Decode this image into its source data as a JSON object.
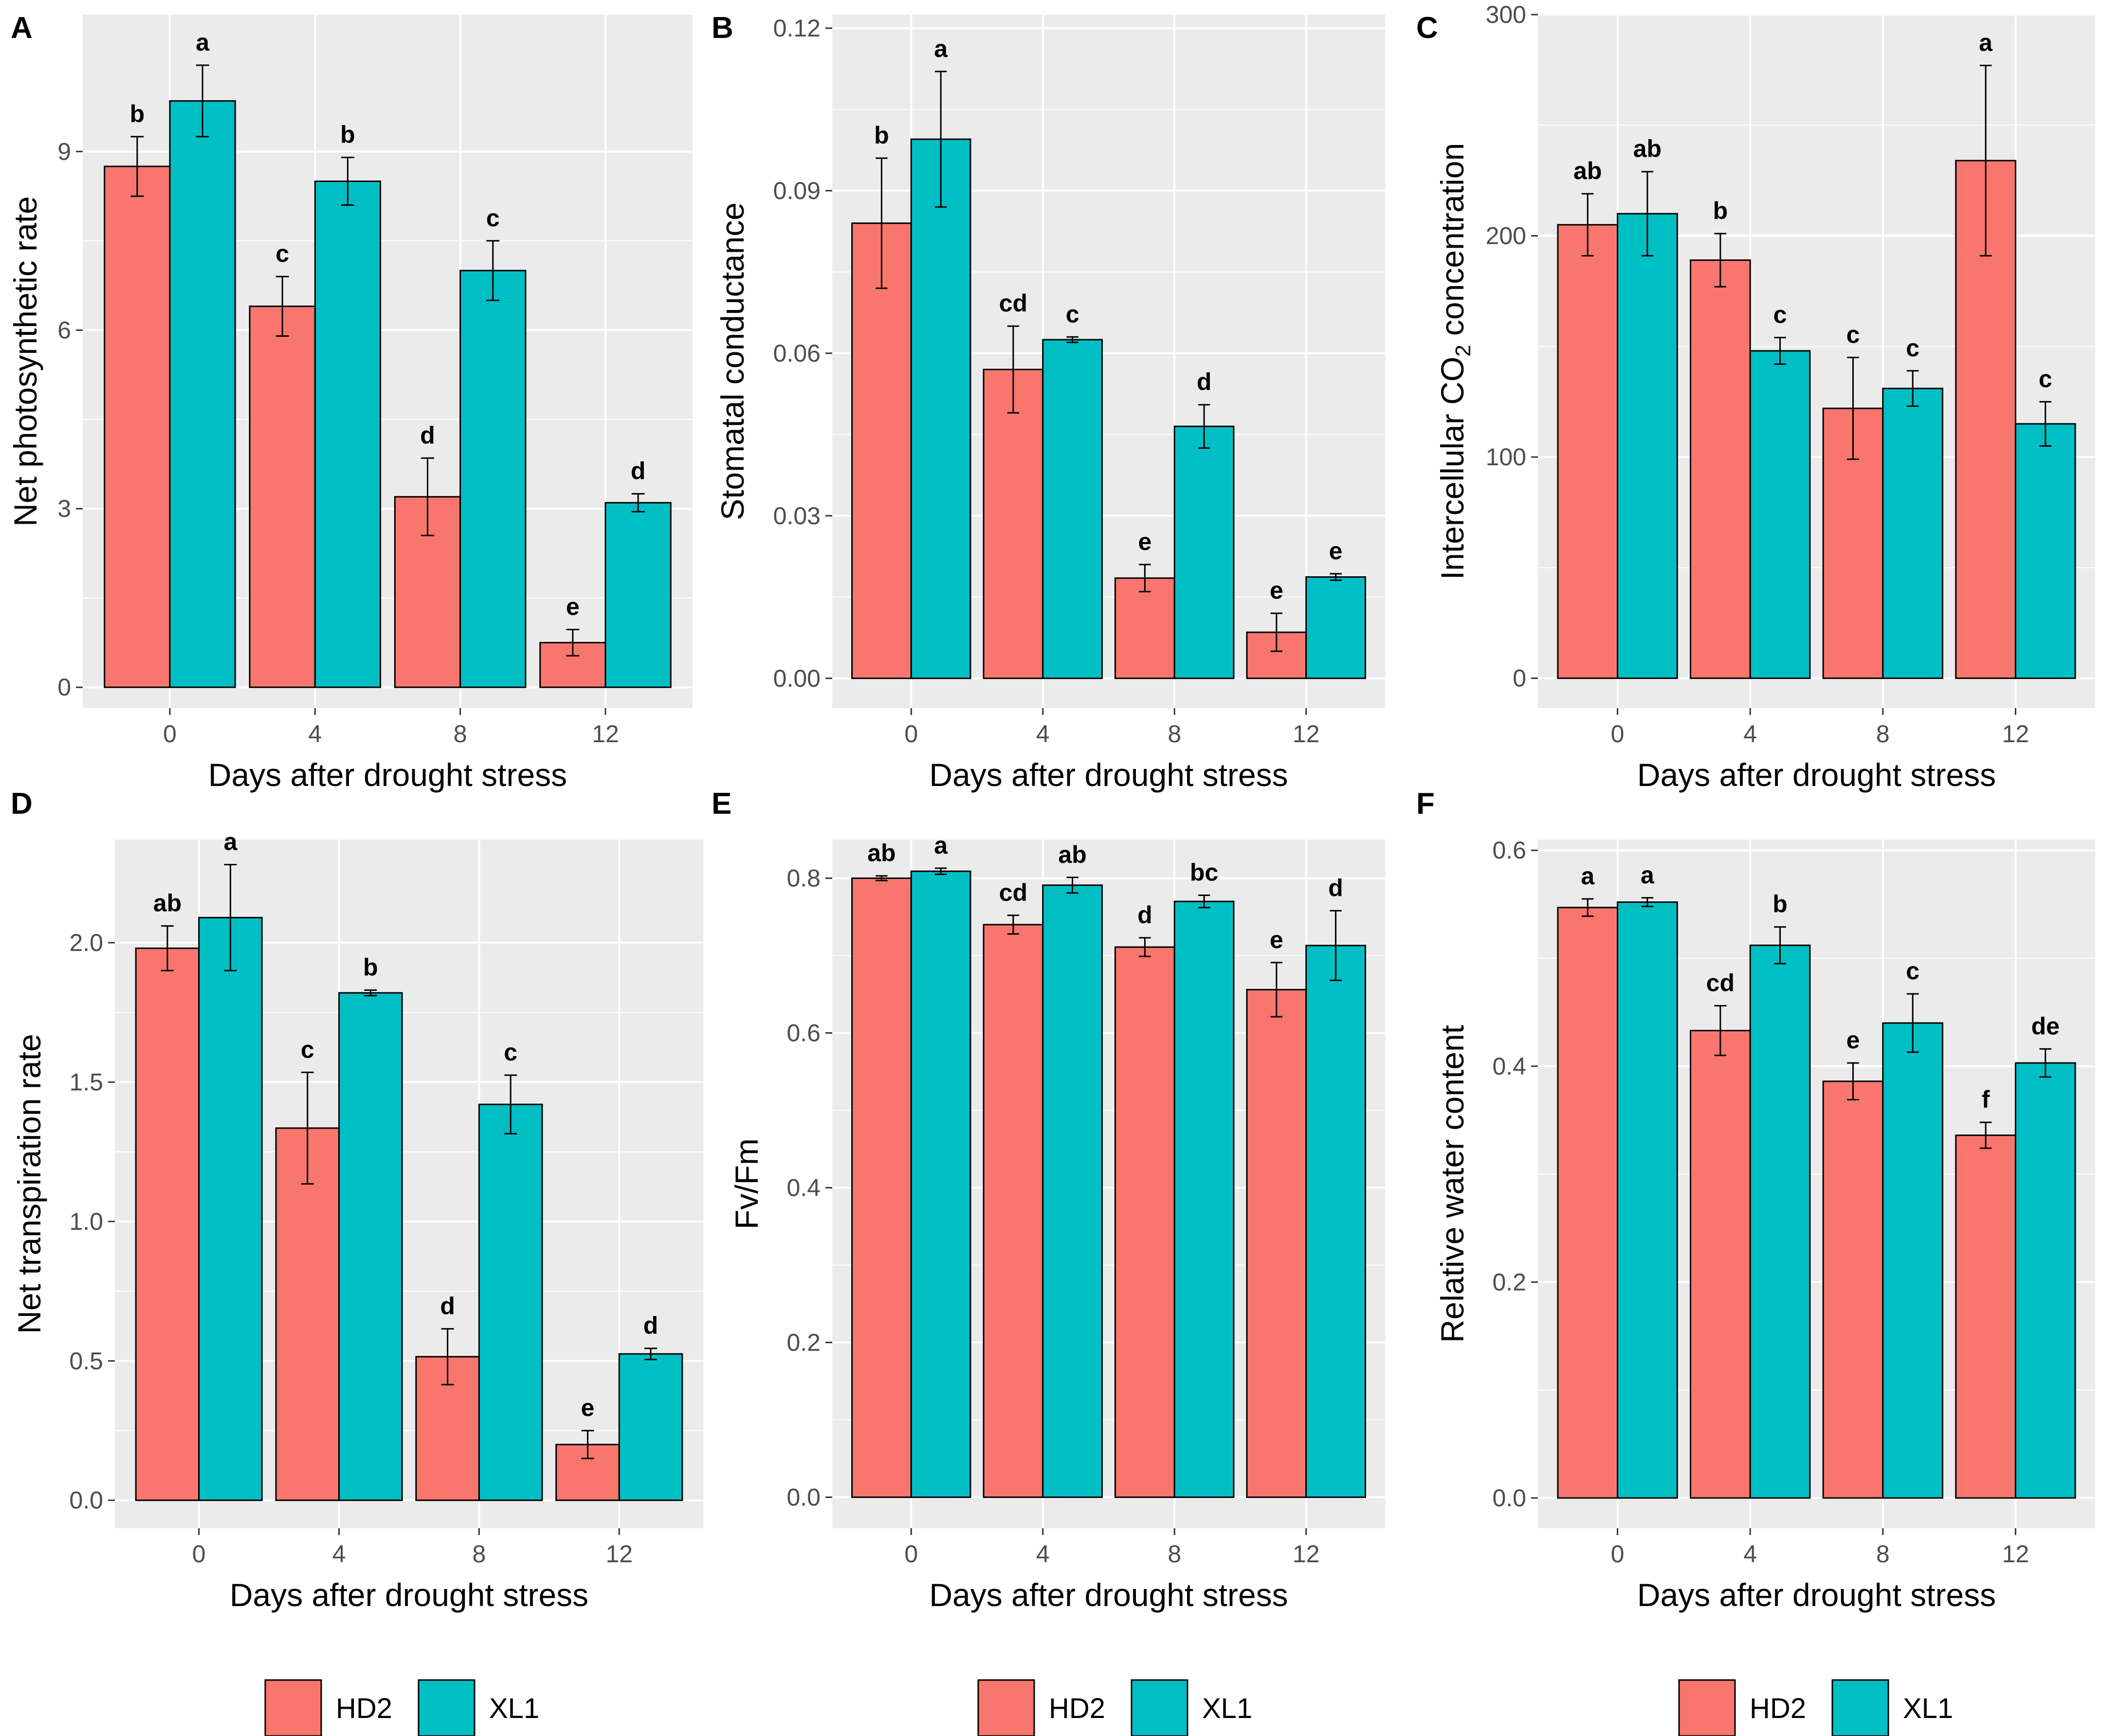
{
  "colors": {
    "HD2": "#F8766D",
    "XL1": "#00BFC4",
    "panel_bg": "#EBEBEB",
    "grid": "#FFFFFF"
  },
  "legends": [
    {
      "items": [
        {
          "label": "HD2",
          "color": "#F8766D"
        },
        {
          "label": "XL1",
          "color": "#00BFC4"
        }
      ]
    },
    {
      "items": [
        {
          "label": "HD2",
          "color": "#F8766D"
        },
        {
          "label": "XL1",
          "color": "#00BFC4"
        }
      ]
    },
    {
      "items": [
        {
          "label": "HD2",
          "color": "#F8766D"
        },
        {
          "label": "XL1",
          "color": "#00BFC4"
        }
      ]
    }
  ],
  "chart_data": [
    {
      "panel": "A",
      "type": "bar",
      "xlabel": "Days after drought stress",
      "ylabel": "Net photosynthetic rate",
      "categories": [
        "0",
        "4",
        "8",
        "12"
      ],
      "ylim": [
        -0.35,
        11.3
      ],
      "yticks": [
        0,
        3,
        6,
        9
      ],
      "ytick_labels": [
        "0",
        "3",
        "6",
        "9"
      ],
      "series": [
        {
          "name": "HD2",
          "values": [
            8.75,
            6.4,
            3.2,
            0.75
          ],
          "errors": [
            0.5,
            0.5,
            0.65,
            0.22
          ],
          "labels": [
            "b",
            "c",
            "d",
            "e"
          ]
        },
        {
          "name": "XL1",
          "values": [
            9.85,
            8.5,
            7.0,
            3.1
          ],
          "errors": [
            0.6,
            0.4,
            0.5,
            0.15
          ],
          "labels": [
            "a",
            "b",
            "c",
            "d"
          ]
        }
      ]
    },
    {
      "panel": "B",
      "type": "bar",
      "xlabel": "Days after drought stress",
      "ylabel": "Stomatal conductance",
      "categories": [
        "0",
        "4",
        "8",
        "12"
      ],
      "ylim": [
        -0.0055,
        0.1225
      ],
      "yticks": [
        0,
        0.03,
        0.06,
        0.09,
        0.12
      ],
      "ytick_labels": [
        "0.00",
        "0.03",
        "0.06",
        "0.09",
        "0.12"
      ],
      "series": [
        {
          "name": "HD2",
          "values": [
            0.084,
            0.057,
            0.0185,
            0.0085
          ],
          "errors": [
            0.012,
            0.008,
            0.0025,
            0.0035
          ],
          "labels": [
            "b",
            "cd",
            "e",
            "e"
          ]
        },
        {
          "name": "XL1",
          "values": [
            0.0995,
            0.0625,
            0.0465,
            0.0187
          ],
          "errors": [
            0.0125,
            0.0005,
            0.004,
            0.0006
          ],
          "labels": [
            "a",
            "c",
            "d",
            "e"
          ]
        }
      ]
    },
    {
      "panel": "C",
      "type": "bar",
      "xlabel": "Days after drought stress",
      "ylabel": "Intercellular CO",
      "ylabel_subscript": "2",
      "ylabel_suffix": " concentration",
      "categories": [
        "0",
        "4",
        "8",
        "12"
      ],
      "ylim": [
        -13.5,
        300
      ],
      "yticks": [
        0,
        100,
        200,
        300
      ],
      "ytick_labels": [
        "0",
        "100",
        "200",
        "300"
      ],
      "series": [
        {
          "name": "HD2",
          "values": [
            205,
            189,
            122,
            234
          ],
          "errors": [
            14,
            12,
            23,
            43
          ],
          "labels": [
            "ab",
            "b",
            "c",
            "a"
          ]
        },
        {
          "name": "XL1",
          "values": [
            210,
            148,
            131,
            115
          ],
          "errors": [
            19,
            6,
            8,
            10
          ],
          "labels": [
            "ab",
            "c",
            "c",
            "c"
          ]
        }
      ]
    },
    {
      "panel": "D",
      "type": "bar",
      "xlabel": "Days after drought stress",
      "ylabel": "Net transpiration rate",
      "categories": [
        "0",
        "4",
        "8",
        "12"
      ],
      "ylim": [
        -0.1,
        2.37
      ],
      "yticks": [
        0,
        0.5,
        1.0,
        1.5,
        2.0
      ],
      "ytick_labels": [
        "0.0",
        "0.5",
        "1.0",
        "1.5",
        "2.0"
      ],
      "series": [
        {
          "name": "HD2",
          "values": [
            1.98,
            1.335,
            0.515,
            0.2
          ],
          "errors": [
            0.08,
            0.2,
            0.1,
            0.05
          ],
          "labels": [
            "ab",
            "c",
            "d",
            "e"
          ]
        },
        {
          "name": "XL1",
          "values": [
            2.09,
            1.82,
            1.42,
            0.525
          ],
          "errors": [
            0.19,
            0.01,
            0.105,
            0.02
          ],
          "labels": [
            "a",
            "b",
            "c",
            "d"
          ]
        }
      ]
    },
    {
      "panel": "E",
      "type": "bar",
      "xlabel": "Days after drought stress",
      "ylabel": "Fv/Fm",
      "categories": [
        "0",
        "4",
        "8",
        "12"
      ],
      "ylim": [
        -0.04,
        0.85
      ],
      "yticks": [
        0,
        0.2,
        0.4,
        0.6,
        0.8
      ],
      "ytick_labels": [
        "0.0",
        "0.2",
        "0.4",
        "0.6",
        "0.8"
      ],
      "series": [
        {
          "name": "HD2",
          "values": [
            0.8,
            0.74,
            0.711,
            0.656
          ],
          "errors": [
            0.003,
            0.012,
            0.012,
            0.035
          ],
          "labels": [
            "ab",
            "cd",
            "d",
            "e"
          ]
        },
        {
          "name": "XL1",
          "values": [
            0.809,
            0.791,
            0.77,
            0.713
          ],
          "errors": [
            0.004,
            0.01,
            0.008,
            0.045
          ],
          "labels": [
            "a",
            "ab",
            "bc",
            "d"
          ]
        }
      ]
    },
    {
      "panel": "F",
      "type": "bar",
      "xlabel": "Days after drought stress",
      "ylabel": "Relative water content",
      "categories": [
        "0",
        "4",
        "8",
        "12"
      ],
      "ylim": [
        -0.028,
        0.61
      ],
      "yticks": [
        0,
        0.2,
        0.4,
        0.6
      ],
      "ytick_labels": [
        "0.0",
        "0.2",
        "0.4",
        "0.6"
      ],
      "series": [
        {
          "name": "HD2",
          "values": [
            0.547,
            0.433,
            0.386,
            0.336
          ],
          "errors": [
            0.008,
            0.023,
            0.017,
            0.012
          ],
          "labels": [
            "a",
            "cd",
            "e",
            "f"
          ]
        },
        {
          "name": "XL1",
          "values": [
            0.552,
            0.512,
            0.44,
            0.403
          ],
          "errors": [
            0.004,
            0.017,
            0.027,
            0.013
          ],
          "labels": [
            "a",
            "b",
            "c",
            "de"
          ]
        }
      ]
    }
  ]
}
